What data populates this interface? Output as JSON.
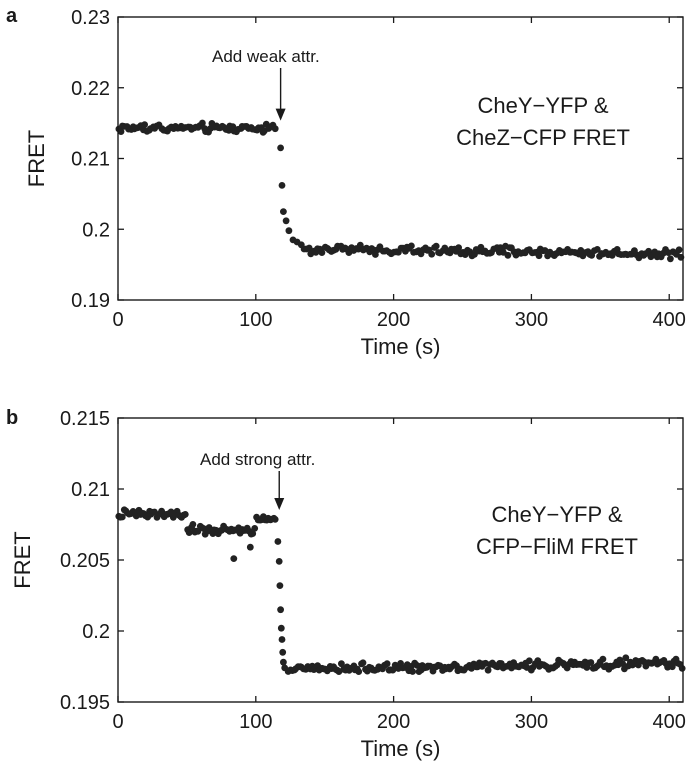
{
  "chart_data": [
    {
      "type": "scatter",
      "panel_letter": "a",
      "xlabel": "Time (s)",
      "ylabel": "FRET",
      "xlim": [
        0,
        410
      ],
      "ylim": [
        0.19,
        0.23
      ],
      "x_ticks": [
        0,
        100,
        200,
        300,
        400
      ],
      "x_tick_labels": [
        "0",
        "100",
        "200",
        "300",
        "400"
      ],
      "y_ticks": [
        0.19,
        0.2,
        0.21,
        0.22,
        0.23
      ],
      "y_tick_labels": [
        "0.19",
        "0.2",
        "0.21",
        "0.22",
        "0.23"
      ],
      "grid": false,
      "annotation": {
        "text": "Add weak attr.",
        "x": 118,
        "y": 0.2145
      },
      "inset_text": [
        "CheY−YFP &",
        "CheZ−CFP FRET"
      ],
      "series": [
        {
          "color": "#222222",
          "segments": [
            {
              "x_start": 0,
              "x_end": 115,
              "count": 78,
              "base": 0.2143,
              "noise": 0.0006
            },
            {
              "x_start": 135,
              "x_end": 410,
              "count": 170,
              "base": 0.1972,
              "slope": -2.5e-06,
              "noise": 0.0006
            }
          ],
          "points": [
            [
              118,
              0.2115
            ],
            [
              119,
              0.2062
            ],
            [
              120,
              0.2025
            ],
            [
              122,
              0.2012
            ],
            [
              124,
              0.1998
            ],
            [
              127,
              0.1985
            ],
            [
              130,
              0.1982
            ],
            [
              133,
              0.1978
            ]
          ]
        }
      ]
    },
    {
      "type": "scatter",
      "panel_letter": "b",
      "xlabel": "Time (s)",
      "ylabel": "FRET",
      "xlim": [
        0,
        410
      ],
      "ylim": [
        0.195,
        0.215
      ],
      "x_ticks": [
        0,
        100,
        200,
        300,
        400
      ],
      "x_tick_labels": [
        "0",
        "100",
        "200",
        "300",
        "400"
      ],
      "y_ticks": [
        0.195,
        0.2,
        0.205,
        0.21,
        0.215
      ],
      "y_tick_labels": [
        "0.195",
        "0.2",
        "0.205",
        "0.21",
        "0.215"
      ],
      "grid": false,
      "annotation": {
        "text": "Add strong attr.",
        "x": 117,
        "y": 0.2081
      },
      "inset_text": [
        "CheY−YFP &",
        "CFP−FliM FRET"
      ],
      "series": [
        {
          "color": "#222222",
          "segments": [
            {
              "x_start": 0,
              "x_end": 50,
              "count": 38,
              "base": 0.2082,
              "noise": 0.0003
            },
            {
              "x_start": 50,
              "x_end": 100,
              "count": 38,
              "base": 0.2071,
              "noise": 0.0003
            },
            {
              "x_start": 100,
              "x_end": 115,
              "count": 12,
              "base": 0.2079,
              "noise": 0.0002
            },
            {
              "x_start": 123,
              "x_end": 410,
              "count": 200,
              "base": 0.1973,
              "slope": 1.6e-06,
              "noise": 0.00028
            }
          ],
          "points": [
            [
              84,
              0.2051
            ],
            [
              96,
              0.2059
            ],
            [
              116,
              0.2063
            ],
            [
              117,
              0.2049
            ],
            [
              117.5,
              0.2032
            ],
            [
              118,
              0.2015
            ],
            [
              118.5,
              0.2002
            ],
            [
              119,
              0.1994
            ],
            [
              119.5,
              0.1985
            ],
            [
              120,
              0.1978
            ],
            [
              121,
              0.1974
            ]
          ]
        }
      ]
    }
  ]
}
